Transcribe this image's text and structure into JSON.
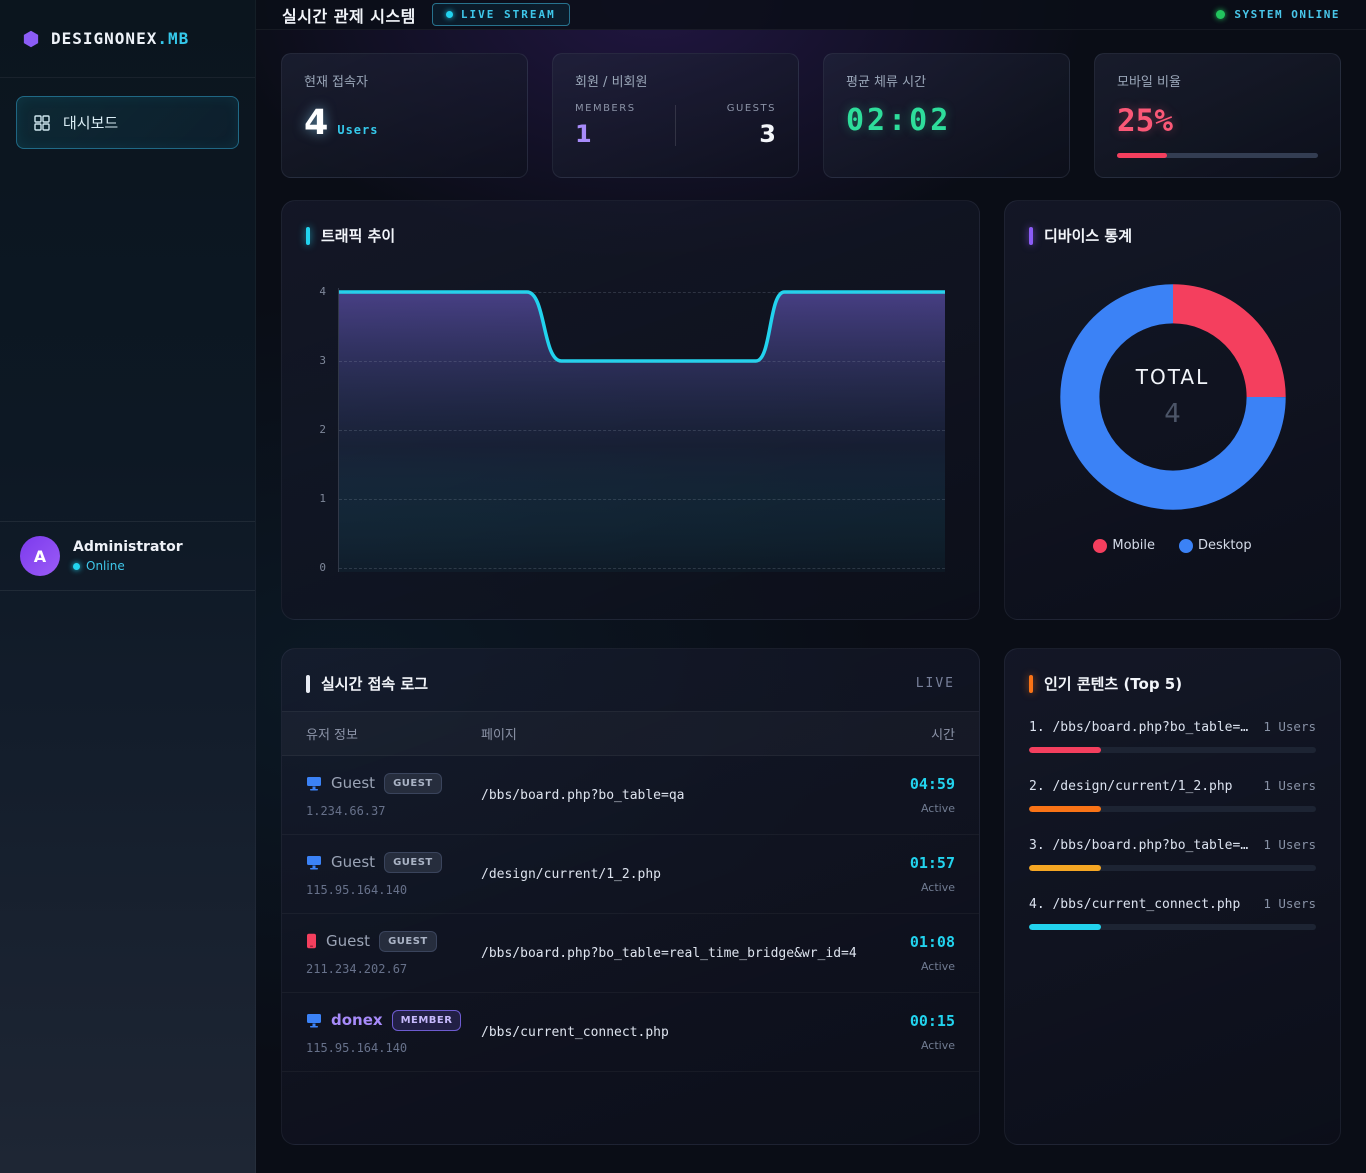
{
  "brand": {
    "name": "DESIGNONEX",
    "suffix": ".MB"
  },
  "topbar": {
    "title": "실시간 관제 시스템",
    "live_badge": "LIVE STREAM",
    "system_status": "SYSTEM ONLINE"
  },
  "sidebar": {
    "menu_dashboard": "대시보드",
    "user": {
      "initial": "A",
      "name": "Administrator",
      "status": "Online"
    }
  },
  "stats": [
    {
      "label": "현재 접속자",
      "value": "4",
      "unit": "Users"
    },
    {
      "label": "회원 / 비회원",
      "members_caption": "MEMBERS",
      "members_value": "1",
      "guests_caption": "GUESTS",
      "guests_value": "3"
    },
    {
      "label": "평균 체류 시간",
      "value": "02:02"
    },
    {
      "label": "모바일 비율",
      "value": "25%",
      "progress_pct": 25,
      "progress_color": "#f43f5e"
    }
  ],
  "traffic_panel": {
    "title": "트래픽 추이"
  },
  "device_panel": {
    "title": "디바이스 통계",
    "center_label": "TOTAL",
    "center_value": "4",
    "legend": [
      {
        "label": "Mobile",
        "color": "#f43f5e"
      },
      {
        "label": "Desktop",
        "color": "#3b82f6"
      }
    ]
  },
  "log_panel": {
    "title": "실시간 접속 로그",
    "live_label": "LIVE",
    "columns": {
      "user": "유저 정보",
      "page": "페이지",
      "time": "시간"
    },
    "rows": [
      {
        "device": "desktop",
        "name": "Guest",
        "badge": "GUEST",
        "ip": "1.234.66.37",
        "page": "/bbs/board.php?bo_table=qa",
        "time": "04:59",
        "status": "Active"
      },
      {
        "device": "desktop",
        "name": "Guest",
        "badge": "GUEST",
        "ip": "115.95.164.140",
        "page": "/design/current/1_2.php",
        "time": "01:57",
        "status": "Active"
      },
      {
        "device": "mobile",
        "name": "Guest",
        "badge": "GUEST",
        "ip": "211.234.202.67",
        "page": "/bbs/board.php?bo_table=real_time_bridge&wr_id=4",
        "time": "01:08",
        "status": "Active"
      },
      {
        "device": "desktop",
        "name": "donex",
        "badge": "MEMBER",
        "ip": "115.95.164.140",
        "page": "/bbs/current_connect.php",
        "time": "00:15",
        "status": "Active"
      }
    ]
  },
  "top_panel": {
    "title": "인기 콘텐츠 (Top 5)",
    "items": [
      {
        "rank": "1.",
        "path": "/bbs/board.php?bo_table=qa",
        "users": "1 Users",
        "pct": 25,
        "color": "#f43f5e"
      },
      {
        "rank": "2.",
        "path": "/design/current/1_2.php",
        "users": "1 Users",
        "pct": 25,
        "color": "#f97316"
      },
      {
        "rank": "3.",
        "path": "/bbs/board.php?bo_table=rea…",
        "users": "1 Users",
        "pct": 25,
        "color": "#f5a623"
      },
      {
        "rank": "4.",
        "path": "/bbs/current_connect.php",
        "users": "1 Users",
        "pct": 25,
        "color": "#22d3ee"
      }
    ]
  },
  "chart_data": [
    {
      "type": "area",
      "title": "트래픽 추이",
      "line_color": "#22d3ee",
      "ylim": [
        0,
        4
      ],
      "yticks": [
        0,
        1,
        2,
        3,
        4
      ],
      "grid": "horizontal-dashed",
      "x_axis_labels": "none",
      "points": [
        {
          "x": 0.0,
          "y": 4
        },
        {
          "x": 0.31,
          "y": 4
        },
        {
          "x": 0.367,
          "y": 3
        },
        {
          "x": 0.688,
          "y": 3
        },
        {
          "x": 0.735,
          "y": 4
        },
        {
          "x": 1.0,
          "y": 4
        }
      ]
    },
    {
      "type": "pie",
      "subtype": "donut",
      "title": "디바이스 통계",
      "center_label": "TOTAL",
      "total": 4,
      "legend_position": "bottom",
      "segments": [
        {
          "label": "Mobile",
          "value": 1,
          "color": "#f43f5e"
        },
        {
          "label": "Desktop",
          "value": 3,
          "color": "#3b82f6"
        }
      ]
    },
    {
      "type": "bar",
      "title": "인기 콘텐츠 (Top 5)",
      "categories": [
        "/bbs/board.php?bo_table=qa",
        "/design/current/1_2.php",
        "/bbs/board.php?bo_table=rea…",
        "/bbs/current_connect.php"
      ],
      "values": [
        1,
        1,
        1,
        1
      ],
      "unit": "Users"
    }
  ]
}
